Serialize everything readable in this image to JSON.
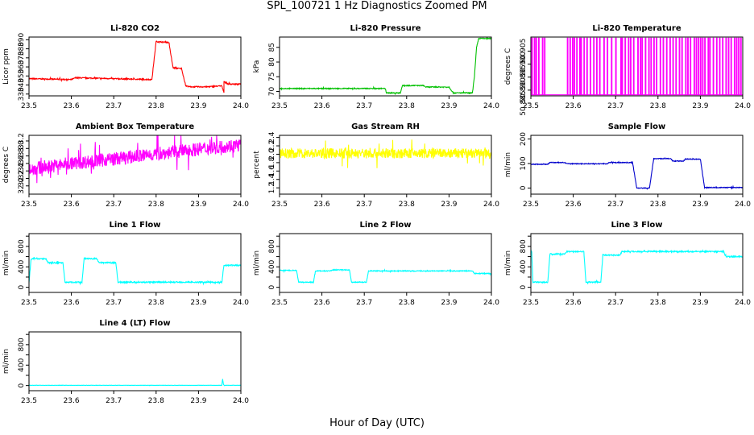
{
  "figure": {
    "title": "SPL_100721  1 Hz Diagnostics Zoomed PM",
    "xlabel": "Hour of Day (UTC)"
  },
  "chart_data": [
    {
      "type": "line",
      "title": "Li-820 CO2",
      "ylabel": "Licor ppm",
      "color": "#ff0000",
      "xlim": [
        23.5,
        24.0
      ],
      "ylim": [
        328,
        393
      ],
      "yticks": [
        330,
        340,
        350,
        360,
        370,
        380,
        390
      ],
      "xticks": [
        23.5,
        23.6,
        23.7,
        23.8,
        23.9,
        24.0
      ],
      "noise": 0.6,
      "x": [
        23.5,
        23.6,
        23.61,
        23.7,
        23.79,
        23.8,
        23.8,
        23.83,
        23.84,
        23.86,
        23.87,
        23.88,
        23.92,
        23.955,
        23.96,
        23.96,
        23.97,
        24.0
      ],
      "y": [
        347,
        346,
        348,
        347,
        346,
        388,
        388,
        387,
        359,
        358,
        339,
        338,
        338,
        339,
        332,
        344,
        341,
        341
      ]
    },
    {
      "type": "line",
      "title": "Li-820 Pressure",
      "ylabel": "kPa",
      "color": "#00c000",
      "xlim": [
        23.5,
        24.0
      ],
      "ylim": [
        68.5,
        88.5
      ],
      "yticks": [
        70,
        75,
        80,
        85
      ],
      "xticks": [
        23.5,
        23.6,
        23.7,
        23.8,
        23.9,
        24.0
      ],
      "noise": 0.15,
      "x": [
        23.5,
        23.75,
        23.752,
        23.785,
        23.79,
        23.84,
        23.845,
        23.9,
        23.91,
        23.955,
        23.96,
        23.965,
        23.97,
        24.0
      ],
      "y": [
        71,
        71,
        69.5,
        69.5,
        72,
        72,
        71.5,
        71.5,
        69.5,
        69.5,
        75,
        85,
        88,
        88
      ]
    },
    {
      "type": "line",
      "title": "Li-820 Temperature",
      "ylabel": "degrees C",
      "color": "#ff00ff",
      "xlim": [
        23.5,
        24.0
      ],
      "ylim": [
        50.8878,
        50.9104
      ],
      "yticks": [
        50.885,
        50.89,
        50.895,
        50.9,
        50.905
      ],
      "ytick_labels": [
        "50.885",
        "50.890",
        "50.895",
        "50.900",
        "50.905"
      ],
      "xticks": [
        23.5,
        23.6,
        23.7,
        23.8,
        23.9,
        24.0
      ],
      "noise": 0,
      "baseline": 50.8882,
      "spike": 50.91,
      "spikes": [
        23.502,
        23.508,
        23.512,
        23.518,
        23.527,
        23.532,
        23.586,
        23.592,
        23.598,
        23.602,
        23.608,
        23.615,
        23.618,
        23.625,
        23.632,
        23.64,
        23.648,
        23.655,
        23.662,
        23.672,
        23.68,
        23.69,
        23.7,
        23.712,
        23.715,
        23.722,
        23.73,
        23.735,
        23.742,
        23.752,
        23.758,
        23.762,
        23.77,
        23.778,
        23.783,
        23.79,
        23.796,
        23.805,
        23.812,
        23.82,
        23.828,
        23.835,
        23.842,
        23.85,
        23.856,
        23.865,
        23.87,
        23.876,
        23.885,
        23.89,
        23.895,
        23.9,
        23.905,
        23.91,
        23.918,
        23.922,
        23.93,
        23.938,
        23.945,
        23.952,
        23.96,
        23.966,
        23.972,
        23.98,
        23.985,
        23.99,
        23.995
      ]
    },
    {
      "type": "line",
      "title": "Ambient Box Temperature",
      "ylabel": "degrees C",
      "color": "#ff00ff",
      "xlim": [
        23.5,
        24.0
      ],
      "ylim": [
        31.78,
        33.35
      ],
      "yticks": [
        32.0,
        32.2,
        32.4,
        32.6,
        32.8,
        33.0,
        33.2
      ],
      "ytick_labels": [
        "32.0",
        "32.2",
        "32.4",
        "32.6",
        "32.8",
        "33.0",
        "33.2"
      ],
      "xticks": [
        23.5,
        23.6,
        23.7,
        23.8,
        23.9,
        24.0
      ],
      "noise": 0.18,
      "x": [
        23.5,
        23.6,
        23.7,
        23.8,
        23.9,
        24.0
      ],
      "y": [
        32.45,
        32.6,
        32.72,
        32.85,
        32.98,
        33.1
      ]
    },
    {
      "type": "line",
      "title": "Gas Stream RH",
      "ylabel": "percent",
      "color": "#ffff00",
      "xlim": [
        23.5,
        24.0
      ],
      "ylim": [
        1.05,
        2.45
      ],
      "yticks": [
        1.2,
        1.4,
        1.6,
        1.8,
        2.0,
        2.2,
        2.4
      ],
      "ytick_labels": [
        "1.2",
        "1.4",
        "1.6",
        "1.8",
        "2.0",
        "2.2",
        "2.4"
      ],
      "xticks": [
        23.5,
        23.6,
        23.7,
        23.8,
        23.9,
        24.0
      ],
      "noise": 0.12,
      "x": [
        23.5,
        24.0
      ],
      "y": [
        2.02,
        2.02
      ]
    },
    {
      "type": "line",
      "title": "Sample Flow",
      "ylabel": "ml/min",
      "color": "#0000cc",
      "xlim": [
        23.5,
        24.0
      ],
      "ylim": [
        -25,
        215
      ],
      "yticks": [
        0,
        100,
        200
      ],
      "xticks": [
        23.5,
        23.6,
        23.7,
        23.8,
        23.9,
        24.0
      ],
      "noise": 1.5,
      "x": [
        23.5,
        23.54,
        23.545,
        23.58,
        23.585,
        23.68,
        23.685,
        23.74,
        23.75,
        23.78,
        23.79,
        23.83,
        23.835,
        23.86,
        23.865,
        23.9,
        23.91,
        24.0
      ],
      "y": [
        97,
        97,
        104,
        104,
        99,
        99,
        104,
        104,
        0,
        0,
        120,
        120,
        110,
        110,
        118,
        118,
        2,
        2
      ]
    },
    {
      "type": "line",
      "title": "Line 1 Flow",
      "ylabel": "ml/min",
      "color": "#00ffff",
      "xlim": [
        23.5,
        24.0
      ],
      "ylim": [
        -100,
        1050
      ],
      "yticks": [
        0,
        200,
        400,
        600,
        800,
        1000
      ],
      "ytick_labels": [
        "0",
        "",
        "400",
        "",
        "800",
        ""
      ],
      "xticks": [
        23.5,
        23.6,
        23.7,
        23.8,
        23.9,
        24.0
      ],
      "noise": 12,
      "x": [
        23.5,
        23.505,
        23.54,
        23.545,
        23.58,
        23.585,
        23.625,
        23.63,
        23.66,
        23.665,
        23.705,
        23.71,
        23.955,
        23.96,
        24.0
      ],
      "y": [
        100,
        560,
        560,
        480,
        480,
        100,
        100,
        560,
        560,
        480,
        480,
        100,
        100,
        430,
        430
      ]
    },
    {
      "type": "line",
      "title": "Line 2 Flow",
      "ylabel": "ml/min",
      "color": "#00ffff",
      "xlim": [
        23.5,
        24.0
      ],
      "ylim": [
        -100,
        1050
      ],
      "yticks": [
        0,
        200,
        400,
        600,
        800,
        1000
      ],
      "ytick_labels": [
        "0",
        "",
        "400",
        "",
        "800",
        ""
      ],
      "xticks": [
        23.5,
        23.6,
        23.7,
        23.8,
        23.9,
        24.0
      ],
      "noise": 8,
      "x": [
        23.5,
        23.54,
        23.545,
        23.58,
        23.585,
        23.62,
        23.625,
        23.665,
        23.67,
        23.705,
        23.71,
        23.955,
        23.96,
        24.0
      ],
      "y": [
        330,
        330,
        100,
        100,
        320,
        320,
        340,
        340,
        100,
        100,
        320,
        320,
        270,
        270
      ]
    },
    {
      "type": "line",
      "title": "Line 3 Flow",
      "ylabel": "ml/min",
      "color": "#00ffff",
      "xlim": [
        23.5,
        24.0
      ],
      "ylim": [
        -100,
        1050
      ],
      "yticks": [
        0,
        200,
        400,
        600,
        800,
        1000
      ],
      "ytick_labels": [
        "0",
        "",
        "400",
        "",
        "800",
        ""
      ],
      "xticks": [
        23.5,
        23.6,
        23.7,
        23.8,
        23.9,
        24.0
      ],
      "noise": 12,
      "x": [
        23.5,
        23.502,
        23.505,
        23.54,
        23.545,
        23.58,
        23.585,
        23.625,
        23.63,
        23.665,
        23.67,
        23.71,
        23.715,
        23.955,
        23.96,
        24.0
      ],
      "y": [
        700,
        700,
        100,
        100,
        650,
        650,
        700,
        700,
        100,
        100,
        630,
        630,
        700,
        700,
        600,
        600
      ]
    },
    {
      "type": "line",
      "title": "Line 4 (LT) Flow",
      "ylabel": "ml/min",
      "color": "#00ffff",
      "xlim": [
        23.5,
        24.0
      ],
      "ylim": [
        -100,
        1050
      ],
      "yticks": [
        0,
        200,
        400,
        600,
        800,
        1000
      ],
      "ytick_labels": [
        "0",
        "",
        "400",
        "",
        "800",
        ""
      ],
      "xticks": [
        23.5,
        23.6,
        23.7,
        23.8,
        23.9,
        24.0
      ],
      "noise": 2,
      "x": [
        23.5,
        23.955,
        23.957,
        23.959,
        23.961,
        24.0
      ],
      "y": [
        5,
        5,
        130,
        20,
        5,
        5
      ]
    }
  ]
}
